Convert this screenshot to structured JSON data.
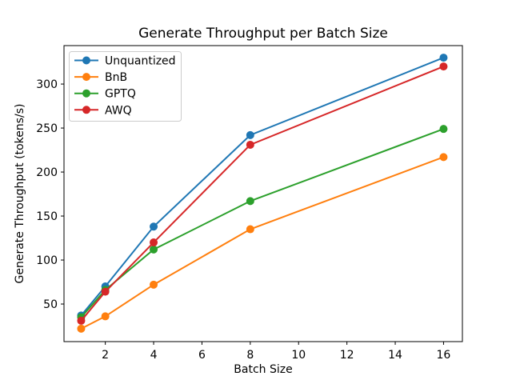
{
  "chart_data": {
    "type": "line",
    "title": "Generate Throughput per Batch Size",
    "xlabel": "Batch Size",
    "ylabel": "Generate Throughput (tokens/s)",
    "x": [
      1,
      2,
      4,
      8,
      16
    ],
    "series": [
      {
        "name": "Unquantized",
        "color": "#1f77b4",
        "values": [
          37,
          70,
          138,
          242,
          330
        ]
      },
      {
        "name": "BnB",
        "color": "#ff7f0e",
        "values": [
          22,
          36,
          72,
          135,
          217
        ]
      },
      {
        "name": "GPTQ",
        "color": "#2ca02c",
        "values": [
          35,
          66,
          112,
          167,
          249
        ]
      },
      {
        "name": "AWQ",
        "color": "#d62728",
        "values": [
          31,
          64,
          120,
          231,
          320
        ]
      }
    ],
    "draw_order": [
      0,
      1,
      2,
      3
    ],
    "xlim": [
      0.29,
      16.78
    ],
    "ylim": [
      7.3,
      343.7
    ],
    "xticks": [
      2,
      4,
      6,
      8,
      10,
      12,
      14,
      16
    ],
    "yticks": [
      50,
      100,
      150,
      200,
      250,
      300
    ],
    "grid": false,
    "legend_position": "upper left",
    "marker": "o",
    "line_width": 2,
    "marker_radius": 5,
    "frame_color": "#000000",
    "background_color": "#ffffff"
  }
}
